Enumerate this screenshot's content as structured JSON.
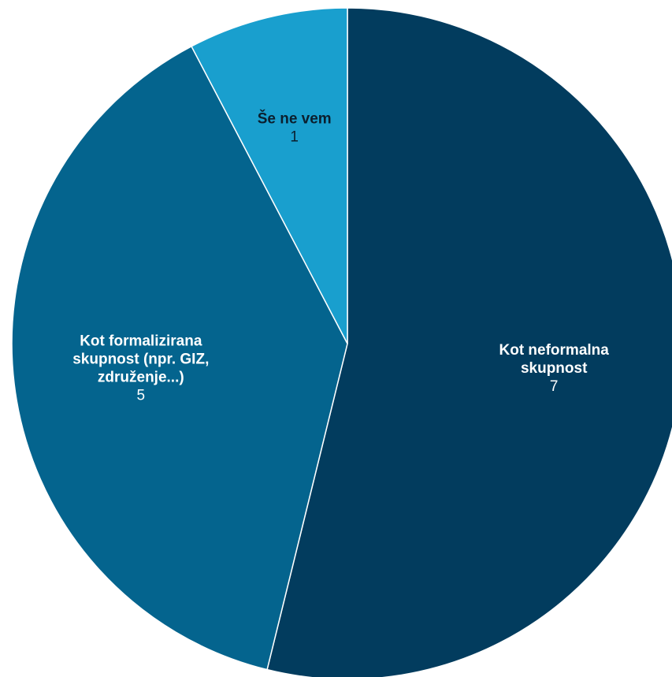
{
  "chart_data": {
    "type": "pie",
    "slices": [
      {
        "label": [
          "Kot neformalna",
          "skupnost"
        ],
        "value": 7,
        "display_value": "7",
        "color": "#023c5e",
        "text_color": "#ffffff"
      },
      {
        "label": [
          "Kot formalizirana",
          "skupnost (npr. GIZ,",
          "združenje...)"
        ],
        "value": 5,
        "display_value": "5",
        "color": "#04648e",
        "text_color": "#ffffff"
      },
      {
        "label": [
          "Še ne vem"
        ],
        "value": 1,
        "display_value": "1",
        "color": "#199fce",
        "text_color": "#0b1f2e"
      }
    ],
    "start_angle_deg": 0,
    "direction": "clockwise",
    "legend": "none",
    "separator_color": "#ffffff"
  }
}
